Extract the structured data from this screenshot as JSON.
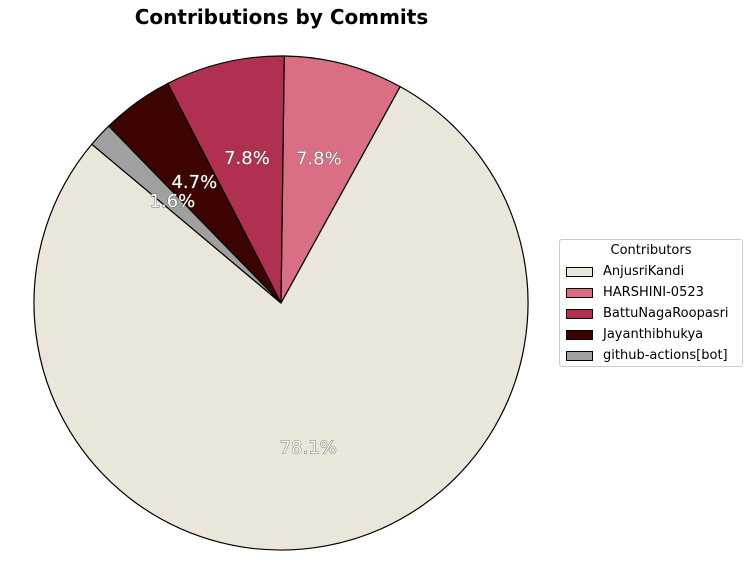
{
  "chart_data": {
    "type": "pie",
    "title": "Contributions by Commits",
    "legend_title": "Contributors",
    "legend_placement": "center-right",
    "series": [
      {
        "name": "AnjusriKandi",
        "value": 78.1,
        "label": "78.1%",
        "color": "#ebe6da"
      },
      {
        "name": "HARSHINI-0523",
        "value": 7.8,
        "label": "7.8%",
        "color": "#da6f83"
      },
      {
        "name": "BattuNagaRoopasri",
        "value": 7.8,
        "label": "7.8%",
        "color": "#b03052"
      },
      {
        "name": "Jayanthibhukya",
        "value": 4.7,
        "label": "4.7%",
        "color": "#3d0301"
      },
      {
        "name": "github-actions[bot]",
        "value": 1.6,
        "label": "1.6%",
        "color": "#a0a0a0"
      }
    ]
  }
}
